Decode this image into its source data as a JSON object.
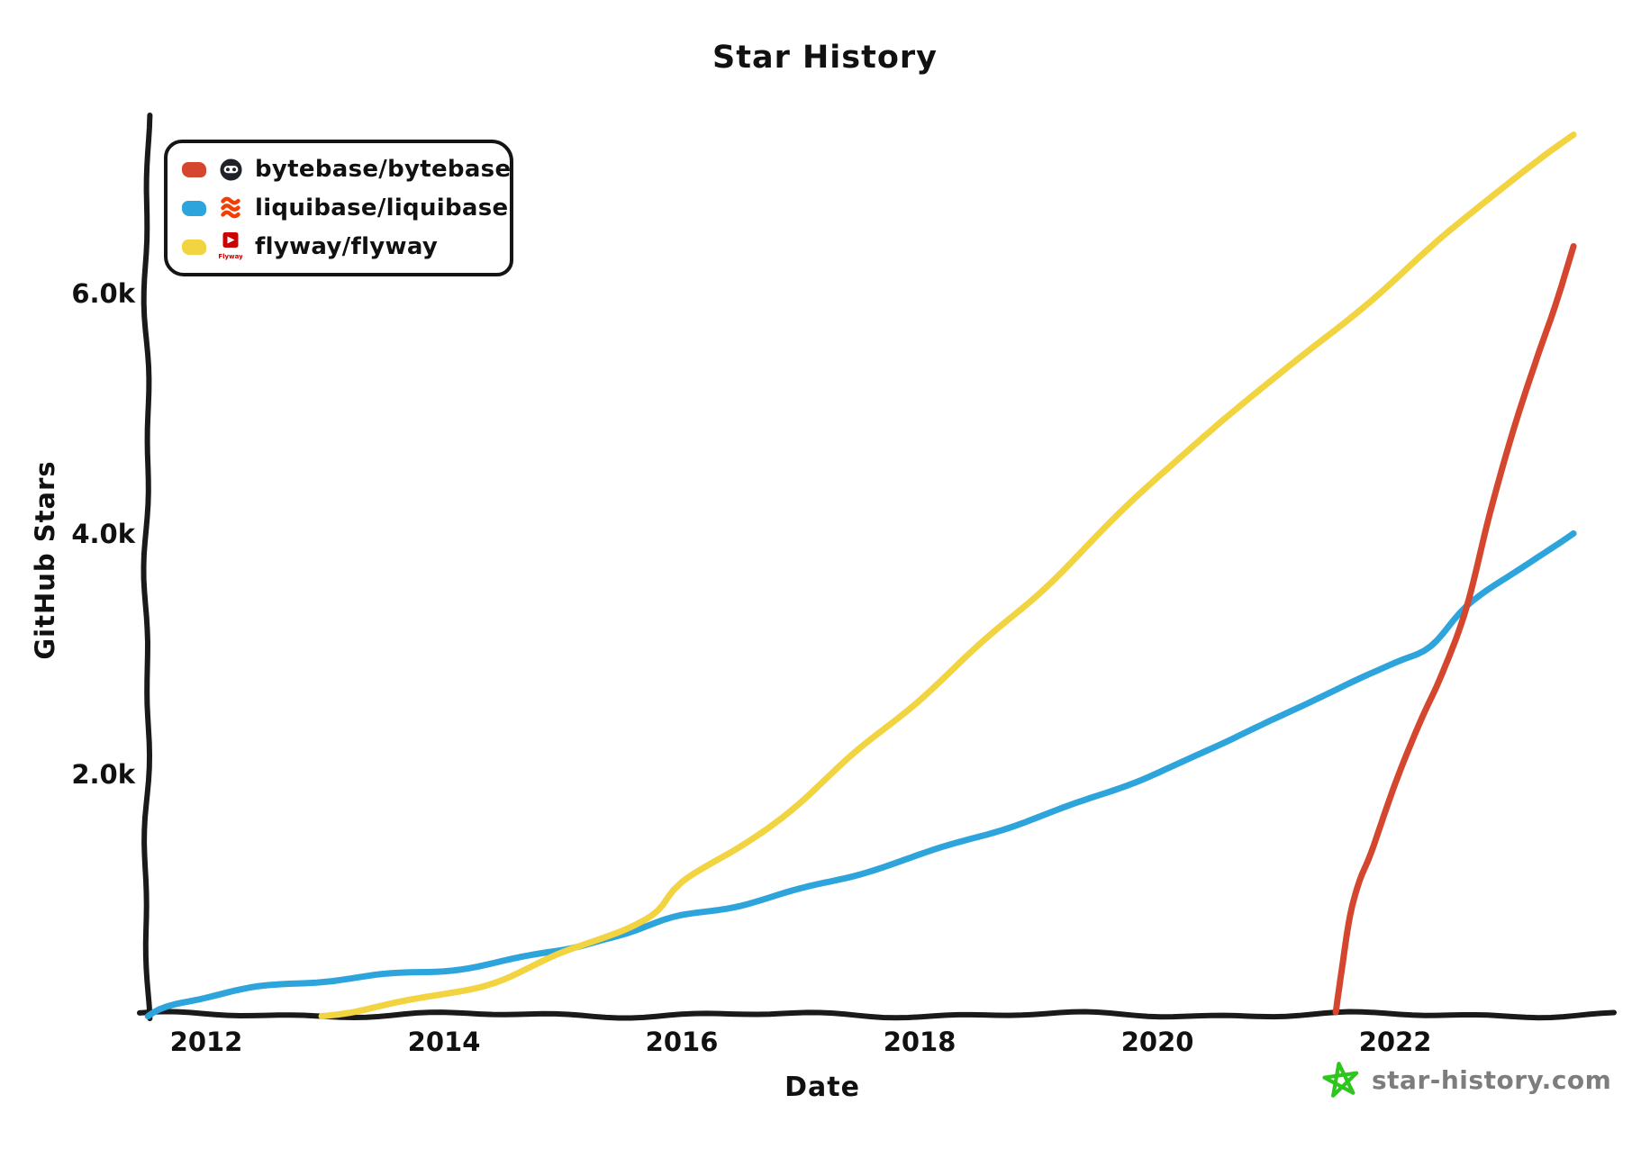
{
  "title": "Star History",
  "colors": {
    "axis": "#1a1a1a",
    "text": "#111111",
    "background": "#ffffff"
  },
  "legend": {
    "items": [
      {
        "label": "bytebase/bytebase",
        "swatch_color": "#d4472e",
        "icon": "bytebase-logo"
      },
      {
        "label": "liquibase/liquibase",
        "swatch_color": "#2da5dc",
        "icon": "liquibase-logo"
      },
      {
        "label": "flyway/flyway",
        "swatch_color": "#f1d43f",
        "icon": "flyway-logo"
      }
    ],
    "flyway_icon_caption": "Flyway",
    "liquibase_logo_color": "#f43d00",
    "flyway_logo_color": "#cc0200",
    "bytebase_logo_color": "#1f2329"
  },
  "watermark": {
    "text": "star-history.com",
    "text_color": "#7d7d7d",
    "star_color": "#2fc51f"
  },
  "chart_data": {
    "type": "line",
    "title": "Star History",
    "xlabel": "Date",
    "ylabel": "GitHub Stars",
    "x_unit": "decimal_year",
    "x_range": [
      2011.5,
      2023.84
    ],
    "y_range": [
      0,
      7468
    ],
    "grid": false,
    "legend_position": "top-left",
    "x_ticks": [
      {
        "label": "2012",
        "value": 2012
      },
      {
        "label": "2014",
        "value": 2014
      },
      {
        "label": "2016",
        "value": 2016
      },
      {
        "label": "2018",
        "value": 2018
      },
      {
        "label": "2020",
        "value": 2020
      },
      {
        "label": "2022",
        "value": 2022
      }
    ],
    "y_ticks": [
      {
        "label": "2.0k",
        "value": 2000
      },
      {
        "label": "4.0k",
        "value": 4000
      },
      {
        "label": "6.0k",
        "value": 6000
      }
    ],
    "series": [
      {
        "name": "liquibase/liquibase",
        "color": "#2da5dc",
        "points": [
          [
            2011.51,
            0
          ],
          [
            2011.6,
            60
          ],
          [
            2011.75,
            115
          ],
          [
            2012,
            160
          ],
          [
            2012.3,
            205
          ],
          [
            2012.6,
            235
          ],
          [
            2013,
            270
          ],
          [
            2013.5,
            330
          ],
          [
            2014,
            385
          ],
          [
            2014.5,
            455
          ],
          [
            2015,
            535
          ],
          [
            2015.3,
            610
          ],
          [
            2015.6,
            680
          ],
          [
            2016,
            820
          ],
          [
            2016.5,
            930
          ],
          [
            2017,
            1055
          ],
          [
            2017.5,
            1175
          ],
          [
            2018,
            1310
          ],
          [
            2018.5,
            1480
          ],
          [
            2019,
            1655
          ],
          [
            2019.5,
            1835
          ],
          [
            2020,
            2020
          ],
          [
            2020.5,
            2210
          ],
          [
            2021,
            2470
          ],
          [
            2021.5,
            2700
          ],
          [
            2022,
            2950
          ],
          [
            2022.3,
            3090
          ],
          [
            2022.6,
            3400
          ],
          [
            2023,
            3660
          ],
          [
            2023.25,
            3830
          ],
          [
            2023.5,
            4000
          ]
        ]
      },
      {
        "name": "flyway/flyway",
        "color": "#f1d43f",
        "points": [
          [
            2012.97,
            0
          ],
          [
            2013.2,
            40
          ],
          [
            2013.5,
            95
          ],
          [
            2014,
            175
          ],
          [
            2014.5,
            285
          ],
          [
            2015,
            500
          ],
          [
            2015.3,
            630
          ],
          [
            2015.6,
            760
          ],
          [
            2015.8,
            880
          ],
          [
            2016,
            1110
          ],
          [
            2016.5,
            1420
          ],
          [
            2017,
            1760
          ],
          [
            2017.5,
            2200
          ],
          [
            2018,
            2620
          ],
          [
            2018.5,
            3080
          ],
          [
            2019,
            3520
          ],
          [
            2019.5,
            4000
          ],
          [
            2020,
            4450
          ],
          [
            2020.5,
            4900
          ],
          [
            2021,
            5300
          ],
          [
            2021.5,
            5720
          ],
          [
            2022,
            6130
          ],
          [
            2022.5,
            6550
          ],
          [
            2023,
            6950
          ],
          [
            2023.5,
            7300
          ]
        ]
      },
      {
        "name": "bytebase/bytebase",
        "color": "#d4472e",
        "points": [
          [
            2021.5,
            0
          ],
          [
            2021.55,
            350
          ],
          [
            2021.62,
            800
          ],
          [
            2021.7,
            1090
          ],
          [
            2021.8,
            1330
          ],
          [
            2022,
            1900
          ],
          [
            2022.2,
            2400
          ],
          [
            2022.4,
            2850
          ],
          [
            2022.6,
            3400
          ],
          [
            2022.8,
            4200
          ],
          [
            2023,
            4900
          ],
          [
            2023.2,
            5500
          ],
          [
            2023.35,
            5920
          ],
          [
            2023.5,
            6400
          ]
        ]
      }
    ]
  }
}
